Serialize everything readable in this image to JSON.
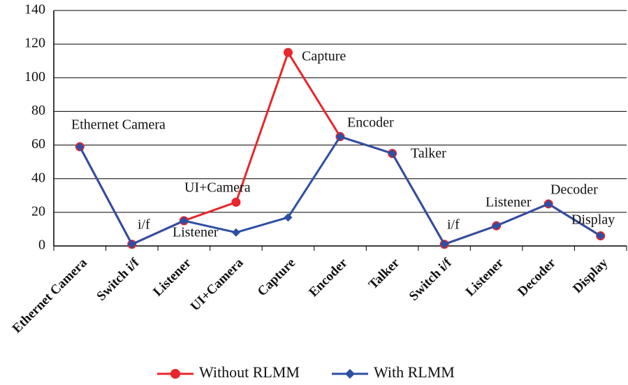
{
  "chart_data": {
    "type": "line",
    "categories": [
      "Ethernet Camera",
      "Switch i/f",
      "Listener",
      "UI+Camera",
      "Capture",
      "Encoder",
      "Talker",
      "Switch i/f",
      "Listener",
      "Decoder",
      "Display"
    ],
    "series": [
      {
        "name": "Without RLMM",
        "color": "#e8262b",
        "marker": "circle",
        "values": [
          59,
          1,
          15,
          26,
          115,
          65,
          55,
          1,
          12,
          25,
          6
        ]
      },
      {
        "name": "With RLMM",
        "color": "#2e4fa3",
        "marker": "diamond",
        "values": [
          59,
          1,
          15,
          8,
          17,
          65,
          55,
          1,
          12,
          25,
          6
        ]
      }
    ],
    "annotations": [
      "Ethernet Camera",
      "i/f",
      "Listener",
      "UI+Camera",
      "Capture",
      "Encoder",
      "Talker",
      "i/f",
      "Listener",
      "Decoder",
      "Display"
    ],
    "ylim": [
      0,
      140
    ],
    "yticks": [
      0,
      20,
      40,
      60,
      80,
      100,
      120,
      140
    ],
    "grid": true,
    "legend": "bottom"
  }
}
